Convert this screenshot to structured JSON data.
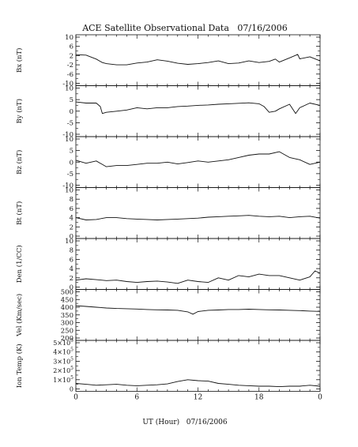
{
  "figure": {
    "title": "ACE Satellite Observational Data   07/16/2006",
    "xlabel": "UT (Hour)   07/16/2006",
    "x_ticks": [
      "0",
      "6",
      "12",
      "18",
      "0"
    ]
  },
  "chart_data": [
    {
      "type": "line",
      "ylabel": "Bx (nT)",
      "ylim": [
        -10,
        10
      ],
      "y_ticks": [
        10,
        6,
        2,
        -2,
        -6,
        -10
      ],
      "xlim": [
        0,
        24
      ],
      "series": [
        {
          "color": "#111111",
          "x": [
            0,
            1,
            2,
            2.6,
            3,
            4,
            5,
            6,
            7,
            8,
            9,
            10,
            11,
            12,
            13,
            14,
            15,
            16,
            17,
            18,
            19,
            19.6,
            20,
            21,
            21.8,
            22,
            23,
            24
          ],
          "y": [
            2.4,
            2.2,
            0.5,
            -1,
            -1.5,
            -2,
            -2,
            -1.2,
            -0.8,
            0.2,
            -0.4,
            -1.3,
            -1.8,
            -1.5,
            -1,
            -0.3,
            -1.5,
            -1.2,
            -0.3,
            -1,
            -0.5,
            0.5,
            -0.8,
            1,
            2.5,
            0.6,
            1.5,
            -0.3
          ]
        }
      ]
    },
    {
      "type": "line",
      "ylabel": "By (nT)",
      "ylim": [
        -10,
        10
      ],
      "y_ticks": [
        10,
        5,
        0,
        -5,
        -10
      ],
      "xlim": [
        0,
        24
      ],
      "series": [
        {
          "color": "#111111",
          "x": [
            0,
            1,
            2,
            2.4,
            2.6,
            3,
            4,
            5,
            6,
            7,
            8,
            9,
            10,
            11,
            12,
            13,
            14,
            15,
            16,
            17,
            18,
            18.5,
            19,
            19.6,
            20,
            21,
            21.6,
            22,
            23,
            24
          ],
          "y": [
            4,
            3.5,
            3.5,
            2,
            -1,
            -0.5,
            0,
            0.5,
            1.5,
            1,
            1.5,
            1.5,
            2,
            2.2,
            2.5,
            2.7,
            3,
            3.2,
            3.4,
            3.6,
            3.2,
            2,
            -0.5,
            0,
            1,
            3,
            -1,
            1.5,
            3.5,
            2.5
          ]
        }
      ]
    },
    {
      "type": "line",
      "ylabel": "Bz (nT)",
      "ylim": [
        -10,
        10
      ],
      "y_ticks": [
        10,
        5,
        0,
        -5,
        -10
      ],
      "xlim": [
        0,
        24
      ],
      "series": [
        {
          "color": "#111111",
          "x": [
            0,
            1,
            2,
            3,
            4,
            5,
            6,
            7,
            8,
            9,
            10,
            11,
            12,
            13,
            14,
            15,
            16,
            17,
            18,
            19,
            20,
            21,
            22,
            23,
            24
          ],
          "y": [
            0.8,
            -0.5,
            0.5,
            -2,
            -1.5,
            -1.5,
            -1,
            -0.5,
            -0.5,
            0,
            -0.8,
            -0.2,
            0.5,
            0,
            0.5,
            1,
            2,
            3,
            3.5,
            3.5,
            4.5,
            2,
            1,
            -1,
            0
          ]
        }
      ]
    },
    {
      "type": "line",
      "ylabel": "Bt (nT)",
      "ylim": [
        0,
        10
      ],
      "y_ticks": [
        10,
        8,
        6,
        4,
        2,
        0
      ],
      "xlim": [
        0,
        24
      ],
      "series": [
        {
          "color": "#111111",
          "x": [
            0,
            1,
            2,
            3,
            4,
            5,
            6,
            7,
            8,
            9,
            10,
            11,
            12,
            13,
            14,
            15,
            16,
            17,
            18,
            19,
            20,
            21,
            22,
            23,
            24
          ],
          "y": [
            4,
            3.5,
            3.6,
            4,
            4,
            3.8,
            3.7,
            3.6,
            3.5,
            3.6,
            3.7,
            3.8,
            3.9,
            4.1,
            4.2,
            4.3,
            4.4,
            4.5,
            4.3,
            4.2,
            4.3,
            4.0,
            4.2,
            4.3,
            3.9
          ]
        }
      ]
    },
    {
      "type": "line",
      "ylabel": "Den (1/CC)",
      "ylim": [
        0,
        10
      ],
      "y_ticks": [
        10,
        8,
        6,
        4,
        2,
        0
      ],
      "xlim": [
        0,
        24
      ],
      "series": [
        {
          "color": "#111111",
          "x": [
            0,
            1,
            2,
            3,
            4,
            5,
            6,
            7,
            8,
            9,
            10,
            11,
            12,
            13,
            14,
            15,
            16,
            17,
            18,
            19,
            20,
            21,
            22,
            23,
            23.5,
            24
          ],
          "y": [
            1.5,
            1.8,
            1.6,
            1.4,
            1.5,
            1.2,
            1.0,
            1.2,
            1.3,
            1.1,
            0.8,
            1.5,
            1.2,
            1.0,
            2.0,
            1.5,
            2.5,
            2.2,
            2.8,
            2.5,
            2.5,
            2.0,
            1.5,
            2.2,
            3.5,
            3.0
          ]
        }
      ]
    },
    {
      "type": "line",
      "ylabel": "Vel (Km/sec)",
      "ylim": [
        200,
        500
      ],
      "y_ticks": [
        500,
        450,
        400,
        350,
        300,
        250,
        200
      ],
      "xlim": [
        0,
        24
      ],
      "series": [
        {
          "color": "#111111",
          "x": [
            0,
            1,
            2,
            3,
            4,
            5,
            6,
            7,
            8,
            9,
            10,
            11,
            11.5,
            12,
            13,
            14,
            15,
            16,
            17,
            18,
            19,
            20,
            21,
            22,
            23,
            24
          ],
          "y": [
            410,
            405,
            400,
            395,
            392,
            390,
            388,
            385,
            383,
            382,
            380,
            370,
            355,
            372,
            380,
            382,
            385,
            385,
            387,
            385,
            383,
            382,
            380,
            378,
            375,
            373
          ]
        }
      ]
    },
    {
      "type": "line",
      "ylabel": "Ion Temp (K)",
      "ylim": [
        0,
        500000
      ],
      "y_ticks": [
        500000,
        400000,
        300000,
        200000,
        100000,
        0
      ],
      "y_tick_labels": [
        [
          "5",
          "5"
        ],
        [
          "4",
          "5"
        ],
        [
          "3",
          "5"
        ],
        [
          "2",
          "5"
        ],
        [
          "1",
          "5"
        ],
        [
          "0",
          ""
        ]
      ],
      "xlim": [
        0,
        24
      ],
      "series": [
        {
          "color": "#111111",
          "x": [
            0,
            1,
            2,
            3,
            4,
            5,
            6,
            7,
            8,
            9,
            10,
            11,
            12,
            13,
            14,
            15,
            16,
            17,
            18,
            19,
            20,
            21,
            22,
            23,
            24
          ],
          "y": [
            60000,
            50000,
            40000,
            45000,
            50000,
            40000,
            35000,
            40000,
            45000,
            55000,
            80000,
            100000,
            90000,
            85000,
            60000,
            50000,
            40000,
            35000,
            30000,
            30000,
            25000,
            30000,
            30000,
            40000,
            30000
          ]
        }
      ]
    }
  ]
}
